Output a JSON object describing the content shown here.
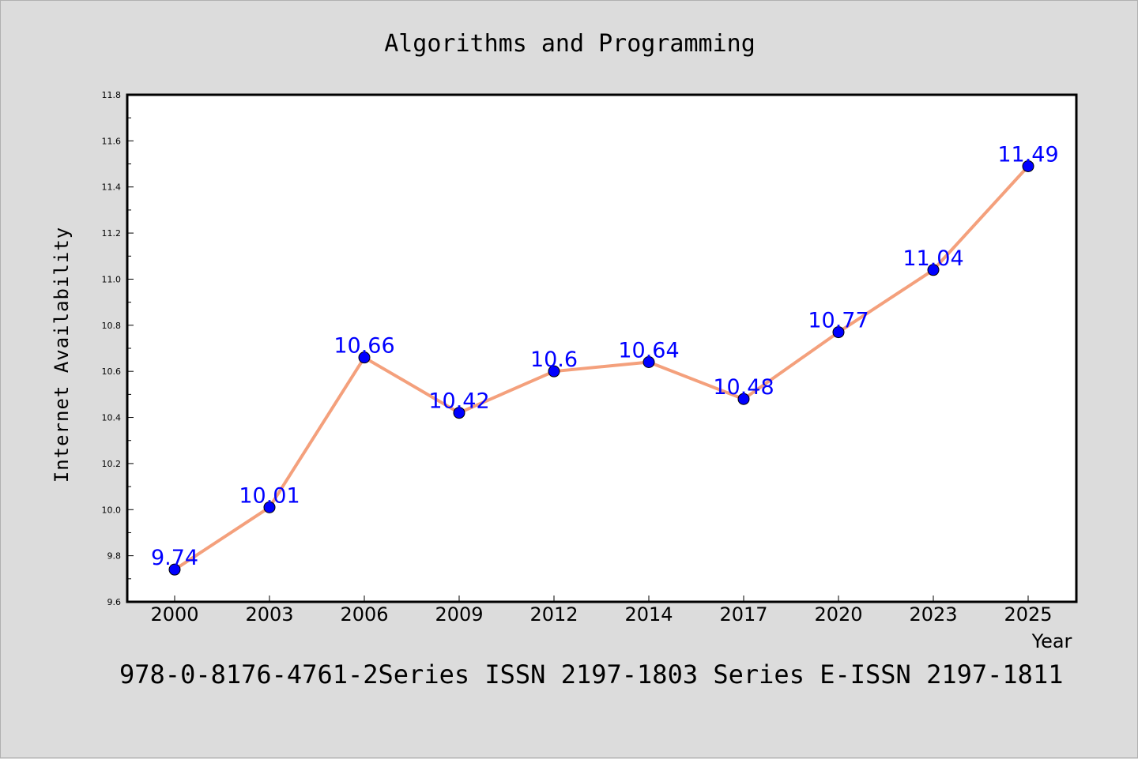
{
  "chart_data": {
    "type": "line",
    "title": "Algorithms and Programming",
    "xlabel": "Year",
    "ylabel": "Internet Availability",
    "categories": [
      "2000",
      "2003",
      "2006",
      "2009",
      "2012",
      "2014",
      "2017",
      "2020",
      "2023",
      "2025"
    ],
    "series": [
      {
        "values": [
          9.74,
          10.01,
          10.66,
          10.42,
          10.6,
          10.64,
          10.48,
          10.77,
          11.04,
          11.49
        ],
        "line_color": "#f4a07c",
        "marker_color": "#0000ff"
      }
    ],
    "data_labels": [
      "9.74",
      "10.01",
      "10.66",
      "10.42",
      "10.6",
      "10.64",
      "10.48",
      "10.77",
      "11.04",
      "11.49"
    ],
    "ylim": [
      9.6,
      11.8
    ],
    "yticks": [
      "9.6",
      "9.8",
      "10.0",
      "10.2",
      "10.4",
      "10.6",
      "10.8",
      "11.0",
      "11.2",
      "11.4",
      "11.6",
      "11.8"
    ],
    "grid": false,
    "legend": "none"
  },
  "footer": "978-0-8176-4761-2Series ISSN 2197-1803 Series E-ISSN 2197-1811",
  "colors": {
    "background": "#dcdcdc",
    "plot_background": "#ffffff",
    "line": "#f4a07c",
    "marker": "#0000ff",
    "data_label": "#0000ff"
  }
}
